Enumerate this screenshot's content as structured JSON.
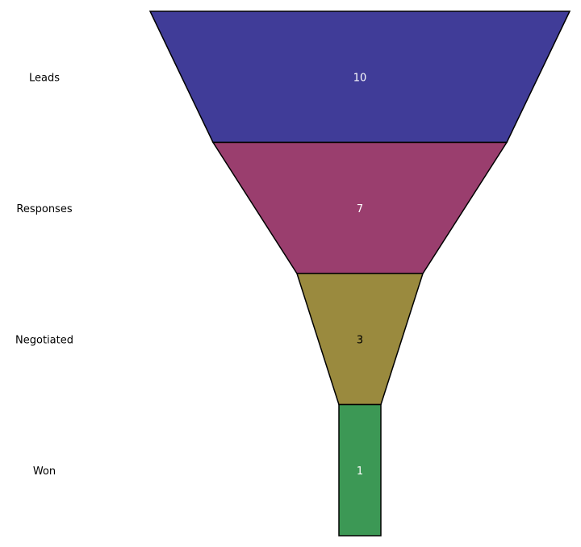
{
  "chart_data": {
    "type": "funnel",
    "categories": [
      "Leads",
      "Responses",
      "Negotiated",
      "Won"
    ],
    "values": [
      10,
      7,
      3,
      1
    ],
    "colors": [
      "#403c98",
      "#9a3e6e",
      "#9a8a3e",
      "#3c9855"
    ],
    "label_colors": [
      "#ffffff",
      "#ffffff",
      "#000000",
      "#ffffff"
    ],
    "title": "",
    "legend": "none"
  }
}
